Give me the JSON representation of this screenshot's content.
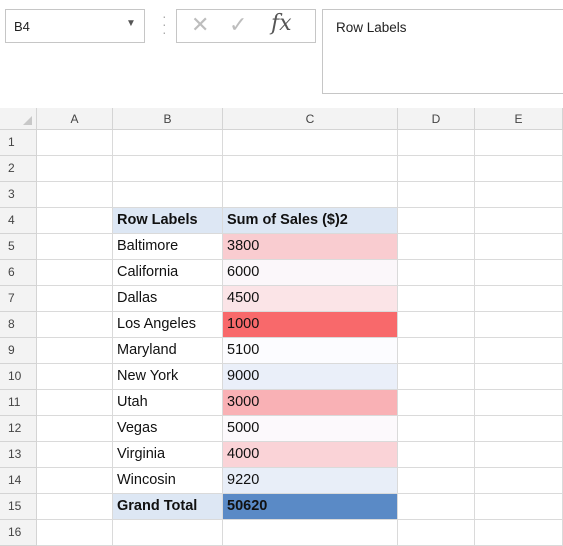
{
  "name_box": {
    "value": "B4"
  },
  "formula_bar": {
    "content": "Row Labels",
    "cancel_symbol": "✕",
    "enter_symbol": "✓",
    "fx_symbol": "fx"
  },
  "columns": [
    "A",
    "B",
    "C",
    "D",
    "E"
  ],
  "rows": [
    "1",
    "2",
    "3",
    "4",
    "5",
    "6",
    "7",
    "8",
    "9",
    "10",
    "11",
    "12",
    "13",
    "14",
    "15",
    "16"
  ],
  "pivot": {
    "header": {
      "row_labels": "Row Labels",
      "sum_label": "Sum of Sales ($)2"
    },
    "items": [
      {
        "label": "Baltimore",
        "value": "3800",
        "color": "#f9ccd0"
      },
      {
        "label": "California",
        "value": "6000",
        "color": "#fbf7fa"
      },
      {
        "label": "Dallas",
        "value": "4500",
        "color": "#fbe4e7"
      },
      {
        "label": "Los Angeles",
        "value": "1000",
        "color": "#f8696b"
      },
      {
        "label": "Maryland",
        "value": "5100",
        "color": "#fcfcff"
      },
      {
        "label": "New York",
        "value": "9000",
        "color": "#eaeff9"
      },
      {
        "label": "Utah",
        "value": "3000",
        "color": "#f9b1b5"
      },
      {
        "label": "Vegas",
        "value": "5000",
        "color": "#fcf9fc"
      },
      {
        "label": "Virginia",
        "value": "4000",
        "color": "#fad3d7"
      },
      {
        "label": "Wincosin",
        "value": "9220",
        "color": "#e8eef8"
      }
    ],
    "grand_total": {
      "label": "Grand Total",
      "value": "50620",
      "color": "#5a8ac6"
    },
    "header_fill": "#dde7f4"
  }
}
